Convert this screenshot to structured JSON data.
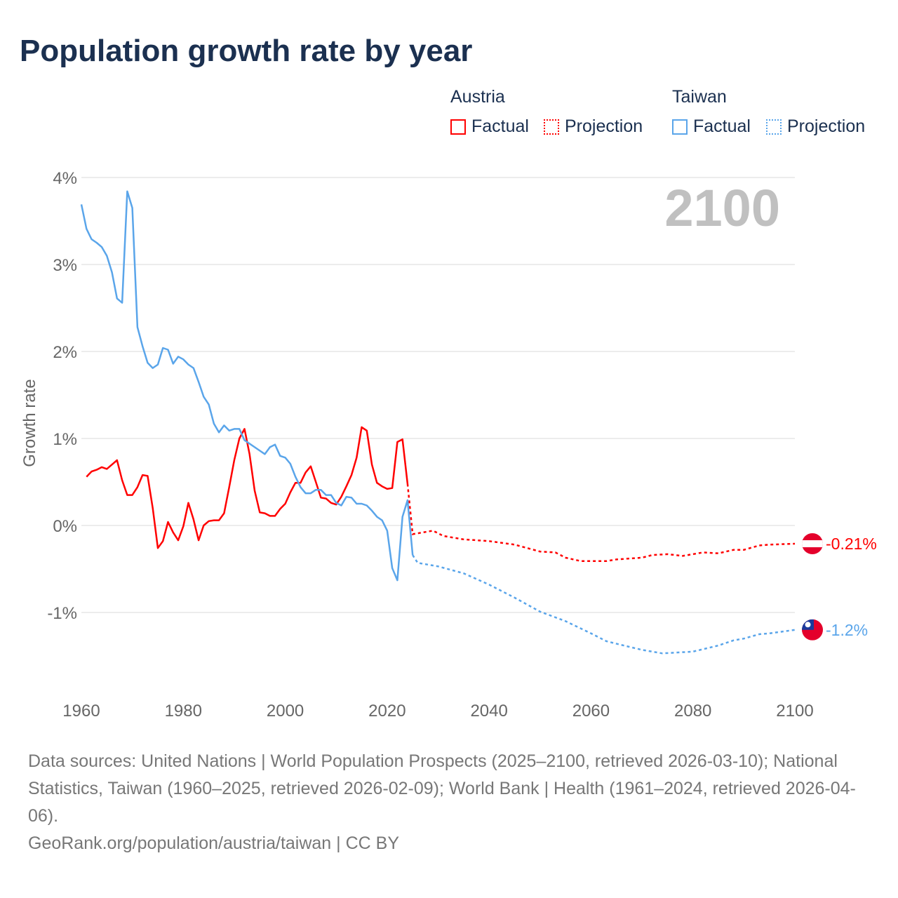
{
  "chart_data": {
    "type": "line",
    "title": "Population growth rate by year",
    "ylabel": "Growth rate",
    "xlabel": "",
    "year_display": "2100",
    "xlim": [
      1960,
      2100
    ],
    "ylim": [
      -1.8,
      4
    ],
    "x_ticks": [
      1960,
      1980,
      2000,
      2020,
      2040,
      2060,
      2080,
      2100
    ],
    "x_tick_labels": [
      "1960",
      "1980",
      "2000",
      "2020",
      "2040",
      "2060",
      "2080",
      "2100"
    ],
    "y_ticks": [
      4,
      3,
      2,
      1,
      0,
      -1
    ],
    "y_tick_labels": [
      "4%",
      "3%",
      "2%",
      "1%",
      "0%",
      "-1%"
    ],
    "grid": true,
    "legend": {
      "placement": "top-right",
      "groups": [
        {
          "name": "Austria",
          "factual_label": "Factual",
          "projection_label": "Projection",
          "color": "#ff0000"
        },
        {
          "name": "Taiwan",
          "factual_label": "Factual",
          "projection_label": "Projection",
          "color": "#5aa5ea"
        }
      ]
    },
    "series": [
      {
        "name": "Austria",
        "color": "#ff0000",
        "end_label": "-0.21%",
        "factual": {
          "x": [
            1961,
            1962,
            1963,
            1964,
            1965,
            1966,
            1967,
            1968,
            1969,
            1970,
            1971,
            1972,
            1973,
            1974,
            1975,
            1976,
            1977,
            1978,
            1979,
            1980,
            1981,
            1982,
            1983,
            1984,
            1985,
            1986,
            1987,
            1988,
            1989,
            1990,
            1991,
            1992,
            1993,
            1994,
            1995,
            1996,
            1997,
            1998,
            1999,
            2000,
            2001,
            2002,
            2003,
            2004,
            2005,
            2006,
            2007,
            2008,
            2009,
            2010,
            2011,
            2012,
            2013,
            2014,
            2015,
            2016,
            2017,
            2018,
            2019,
            2020,
            2021,
            2022,
            2023,
            2024
          ],
          "y": [
            0.56,
            0.62,
            0.64,
            0.67,
            0.65,
            0.7,
            0.75,
            0.52,
            0.35,
            0.35,
            0.44,
            0.58,
            0.57,
            0.2,
            -0.26,
            -0.18,
            0.04,
            -0.08,
            -0.17,
            -0.01,
            0.26,
            0.07,
            -0.17,
            0.0,
            0.05,
            0.06,
            0.06,
            0.14,
            0.44,
            0.75,
            1.0,
            1.11,
            0.82,
            0.4,
            0.15,
            0.14,
            0.11,
            0.11,
            0.19,
            0.25,
            0.38,
            0.49,
            0.49,
            0.61,
            0.68,
            0.5,
            0.32,
            0.31,
            0.26,
            0.24,
            0.33,
            0.45,
            0.58,
            0.78,
            1.13,
            1.09,
            0.7,
            0.49,
            0.45,
            0.42,
            0.43,
            0.96,
            0.99,
            0.48
          ]
        },
        "projection": {
          "x": [
            2024,
            2025,
            2027,
            2029,
            2031,
            2035,
            2040,
            2045,
            2050,
            2053,
            2055,
            2058,
            2060,
            2063,
            2065,
            2070,
            2072,
            2075,
            2078,
            2082,
            2085,
            2088,
            2090,
            2093,
            2095,
            2100
          ],
          "y": [
            0.48,
            -0.1,
            -0.08,
            -0.06,
            -0.12,
            -0.16,
            -0.18,
            -0.22,
            -0.3,
            -0.31,
            -0.37,
            -0.41,
            -0.41,
            -0.41,
            -0.39,
            -0.37,
            -0.34,
            -0.33,
            -0.35,
            -0.31,
            -0.32,
            -0.28,
            -0.28,
            -0.23,
            -0.22,
            -0.21
          ]
        }
      },
      {
        "name": "Taiwan",
        "color": "#5aa5ea",
        "end_label": "-1.2%",
        "factual": {
          "x": [
            1960,
            1961,
            1962,
            1963,
            1964,
            1965,
            1966,
            1967,
            1968,
            1969,
            1970,
            1971,
            1972,
            1973,
            1974,
            1975,
            1976,
            1977,
            1978,
            1979,
            1980,
            1981,
            1982,
            1983,
            1984,
            1985,
            1986,
            1987,
            1988,
            1989,
            1990,
            1991,
            1992,
            1993,
            1994,
            1995,
            1996,
            1997,
            1998,
            1999,
            2000,
            2001,
            2002,
            2003,
            2004,
            2005,
            2006,
            2007,
            2008,
            2009,
            2010,
            2011,
            2012,
            2013,
            2014,
            2015,
            2016,
            2017,
            2018,
            2019,
            2020,
            2021,
            2022,
            2023,
            2024,
            2025
          ],
          "y": [
            3.69,
            3.41,
            3.29,
            3.25,
            3.2,
            3.1,
            2.91,
            2.61,
            2.56,
            3.84,
            3.65,
            2.28,
            2.06,
            1.87,
            1.81,
            1.85,
            2.04,
            2.02,
            1.86,
            1.94,
            1.91,
            1.85,
            1.81,
            1.65,
            1.48,
            1.39,
            1.17,
            1.07,
            1.15,
            1.09,
            1.11,
            1.11,
            0.98,
            0.94,
            0.9,
            0.86,
            0.82,
            0.9,
            0.93,
            0.8,
            0.78,
            0.71,
            0.56,
            0.44,
            0.37,
            0.37,
            0.41,
            0.41,
            0.35,
            0.35,
            0.26,
            0.23,
            0.33,
            0.32,
            0.25,
            0.25,
            0.23,
            0.17,
            0.1,
            0.06,
            -0.06,
            -0.49,
            -0.63,
            0.1,
            0.29,
            -0.34
          ]
        },
        "projection": {
          "x": [
            2025,
            2026,
            2030,
            2035,
            2040,
            2045,
            2050,
            2055,
            2060,
            2063,
            2065,
            2070,
            2074,
            2080,
            2085,
            2088,
            2090,
            2093,
            2095,
            2100
          ],
          "y": [
            -0.34,
            -0.43,
            -0.47,
            -0.55,
            -0.68,
            -0.83,
            -0.99,
            -1.1,
            -1.24,
            -1.33,
            -1.36,
            -1.43,
            -1.47,
            -1.45,
            -1.38,
            -1.32,
            -1.3,
            -1.25,
            -1.24,
            -1.2
          ]
        }
      }
    ]
  },
  "footer": {
    "sources": "Data sources: United Nations | World Population Prospects (2025–2100, retrieved 2026-03-10); National Statistics, Taiwan (1960–2025, retrieved 2026-02-09); World Bank | Health (1961–2024, retrieved 2026-04-06).",
    "credit": "GeoRank.org/population/austria/taiwan | CC BY"
  }
}
